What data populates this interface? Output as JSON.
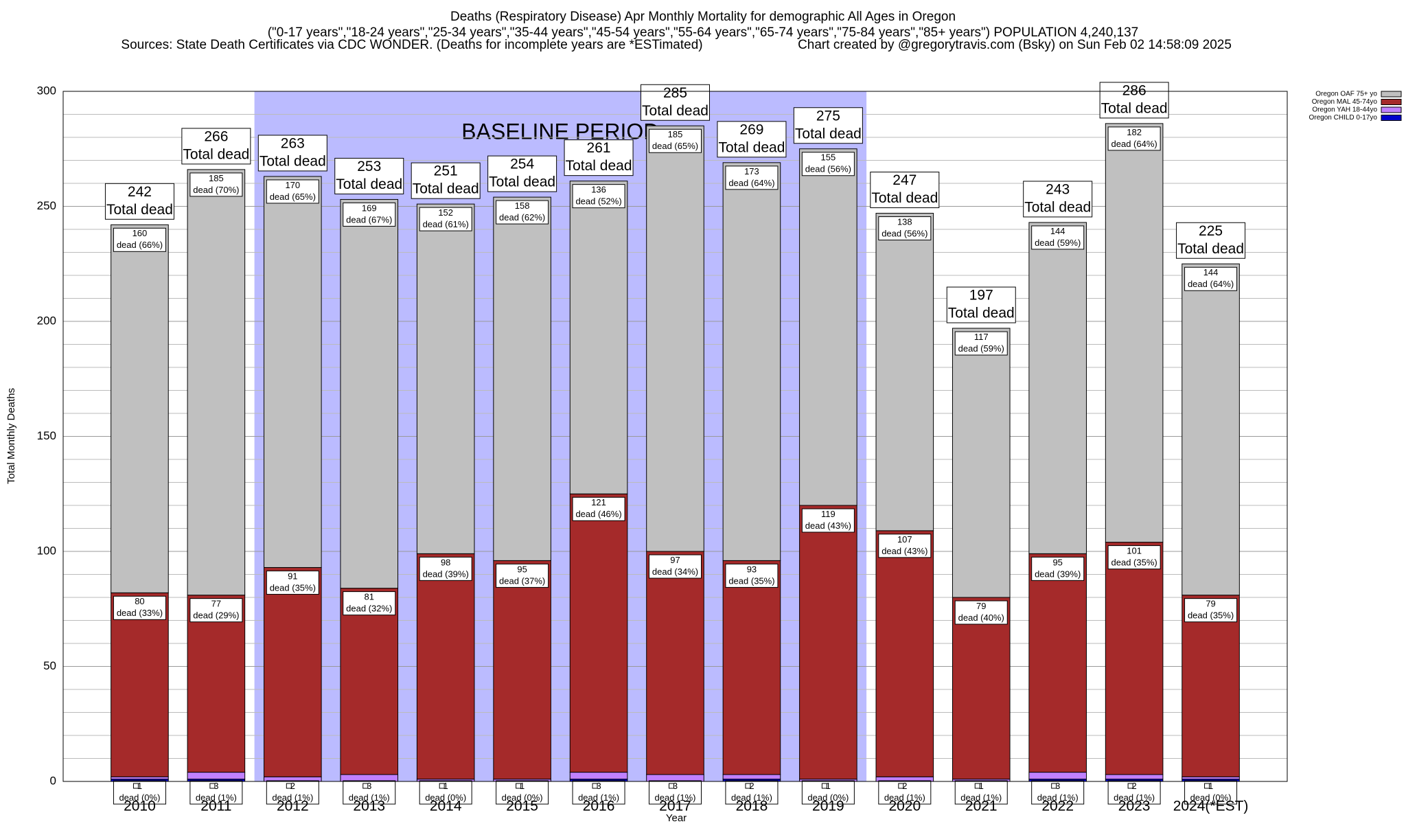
{
  "chart_data": {
    "type": "stacked_bar",
    "title": "Deaths (Respiratory Disease) Apr Monthly Mortality for demographic All Ages in Oregon",
    "subtitle": "(\"0-17 years\",\"18-24 years\",\"25-34 years\",\"35-44 years\",\"45-54 years\",\"55-64 years\",\"65-74 years\",\"75-84 years\",\"85+ years\") POPULATION 4,240,137",
    "source": "Sources: State Death Certificates via CDC WONDER. (Deaths for incomplete years are *ESTimated)",
    "credit": "Chart created by @gregorytravis.com (Bsky) on Sun Feb 02 14:58:09 2025",
    "x_label": "Year",
    "y_label": "Total Monthly Deaths",
    "categories": [
      "2010",
      "2011",
      "2012",
      "2013",
      "2014",
      "2015",
      "2016",
      "2017",
      "2018",
      "2019",
      "2020",
      "2021",
      "2022",
      "2023",
      "2024(*EST)"
    ],
    "series": [
      {
        "name": "Oregon OAF 75+ yo",
        "color": "#c0c0c0",
        "values": [
          160,
          185,
          170,
          169,
          152,
          158,
          136,
          185,
          173,
          155,
          138,
          117,
          144,
          182,
          144
        ],
        "percent_labels": [
          "dead (66%)",
          "dead (70%)",
          "dead (65%)",
          "dead (67%)",
          "dead (61%)",
          "dead (62%)",
          "dead (52%)",
          "dead (65%)",
          "dead (64%)",
          "dead (56%)",
          "dead (56%)",
          "dead (59%)",
          "dead (59%)",
          "dead (64%)",
          "dead (64%)"
        ]
      },
      {
        "name": "Oregon MAL 45-74yo",
        "color": "#a52a2a",
        "values": [
          80,
          77,
          91,
          81,
          98,
          95,
          121,
          97,
          93,
          119,
          107,
          79,
          95,
          101,
          79
        ],
        "percent_labels": [
          "dead (33%)",
          "dead (29%)",
          "dead (35%)",
          "dead (32%)",
          "dead (39%)",
          "dead (37%)",
          "dead (46%)",
          "dead (34%)",
          "dead (35%)",
          "dead (43%)",
          "dead (43%)",
          "dead (40%)",
          "dead (39%)",
          "dead (35%)",
          "dead (35%)"
        ]
      },
      {
        "name": "Oregon YAH 18-44yo",
        "color": "#c080ff",
        "values": [
          1,
          3,
          2,
          3,
          1,
          1,
          3,
          3,
          2,
          1,
          2,
          1,
          3,
          2,
          1
        ],
        "percent_labels": [
          "dead (0%)",
          "dead (1%)",
          "dead (1%)",
          "dead (1%)",
          "dead (0%)",
          "dead (0%)",
          "dead (1%)",
          "dead (1%)",
          "dead (1%)",
          "dead (0%)",
          "dead (1%)",
          "dead (1%)",
          "dead (1%)",
          "dead (1%)",
          "dead (0%)"
        ]
      },
      {
        "name": "Oregon CHILD 0-17yo",
        "color": "#0000cc",
        "values": [
          1,
          1,
          0,
          0,
          0,
          0,
          1,
          0,
          1,
          0,
          0,
          0,
          1,
          1,
          1
        ]
      }
    ],
    "totals": [
      242,
      266,
      263,
      253,
      251,
      254,
      261,
      285,
      269,
      275,
      247,
      197,
      243,
      286,
      225
    ],
    "total_label": "Total dead",
    "baseline": {
      "label": "BASELINE PERIOD",
      "from": "2012",
      "to": "2019",
      "color": "#bbbbff"
    },
    "ylim": [
      0,
      300
    ],
    "yticks": [
      0,
      50,
      100,
      150,
      200,
      250,
      300
    ],
    "minor_yticks": [
      10,
      20,
      30,
      40,
      60,
      70,
      80,
      90,
      110,
      120,
      130,
      140,
      160,
      170,
      180,
      190,
      210,
      220,
      230,
      240,
      260,
      270,
      280,
      290
    ],
    "grid": true,
    "legend": "top-right"
  }
}
